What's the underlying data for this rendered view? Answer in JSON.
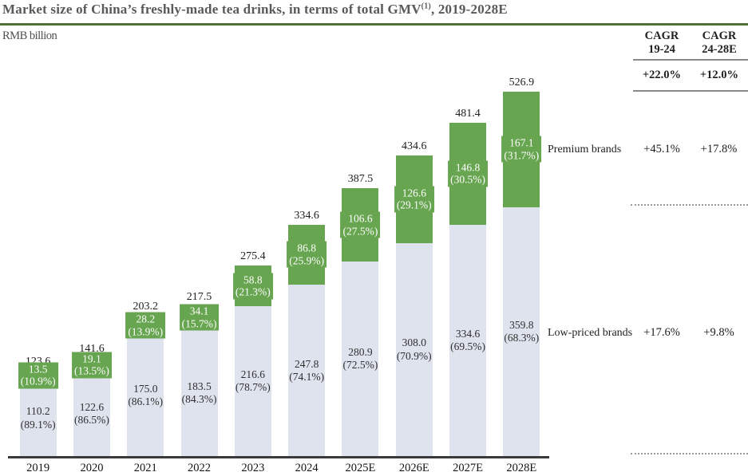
{
  "title": {
    "prefix": "Market size of China’s freshly-made tea drinks, in terms of total GMV",
    "superscript": "(1)",
    "suffix": ", 2019-2028E"
  },
  "unit_label": "RMB billion",
  "colors": {
    "premium_green": "#68a551",
    "low_priced_gray": "#dfe3ee",
    "title_underline_green": "#4e7136",
    "axis_dark": "#3a3a3a"
  },
  "cagr_table": {
    "columns": [
      {
        "line1": "CAGR",
        "line2": "19-24"
      },
      {
        "line1": "CAGR",
        "line2": "24-28E"
      }
    ],
    "total_row": [
      "+22.0%",
      "+12.0%"
    ],
    "rows": [
      {
        "label": "Premium brands",
        "values": [
          "+45.1%",
          "+17.8%"
        ]
      },
      {
        "label": "Low-priced brands",
        "values": [
          "+17.6%",
          "+9.8%"
        ]
      }
    ]
  },
  "chart_data": {
    "type": "bar",
    "stacked": true,
    "title": "Market size of China’s freshly-made tea drinks, in terms of total GMV(1), 2019-2028E",
    "ylabel": "RMB billion",
    "grid": false,
    "categories": [
      "2019",
      "2020",
      "2021",
      "2022",
      "2023",
      "2024",
      "2025E",
      "2026E",
      "2027E",
      "2028E"
    ],
    "totals": [
      123.6,
      141.6,
      203.2,
      217.5,
      275.4,
      334.6,
      387.5,
      434.6,
      481.4,
      526.9
    ],
    "total_labels": [
      "123.6",
      "141.6",
      "203.2",
      "217.5",
      "275.4",
      "334.6",
      "387.5",
      "434.6",
      "481.4",
      "526.9"
    ],
    "series": [
      {
        "name": "Premium brands",
        "color": "#68a551",
        "values": [
          13.5,
          19.1,
          28.2,
          34.1,
          58.8,
          86.8,
          106.6,
          126.6,
          146.8,
          167.1
        ],
        "value_labels": [
          "13.5",
          "19.1",
          "28.2",
          "34.1",
          "58.8",
          "86.8",
          "106.6",
          "126.6",
          "146.8",
          "167.1"
        ],
        "share_labels": [
          "(10.9%)",
          "(13.5%)",
          "(13.9%)",
          "(15.7%)",
          "(21.3%)",
          "(25.9%)",
          "(27.5%)",
          "(29.1%)",
          "(30.5%)",
          "(31.7%)"
        ]
      },
      {
        "name": "Low-priced brands",
        "color": "#dfe3ee",
        "values": [
          110.2,
          122.6,
          175.0,
          183.5,
          216.6,
          247.8,
          280.9,
          308.0,
          334.6,
          359.8
        ],
        "value_labels": [
          "110.2",
          "122.6",
          "175.0",
          "183.5",
          "216.6",
          "247.8",
          "280.9",
          "308.0",
          "334.6",
          "359.8"
        ],
        "share_labels": [
          "(89.1%)",
          "(86.5%)",
          "(86.1%)",
          "(84.3%)",
          "(78.7%)",
          "(74.1%)",
          "(72.5%)",
          "(70.9%)",
          "(69.5%)",
          "(68.3%)"
        ]
      }
    ],
    "cagr_19_24": {
      "total": "+22.0%",
      "premium": "+45.1%",
      "low_priced": "+17.6%"
    },
    "cagr_24_28E": {
      "total": "+12.0%",
      "premium": "+17.8%",
      "low_priced": "+9.8%"
    }
  }
}
